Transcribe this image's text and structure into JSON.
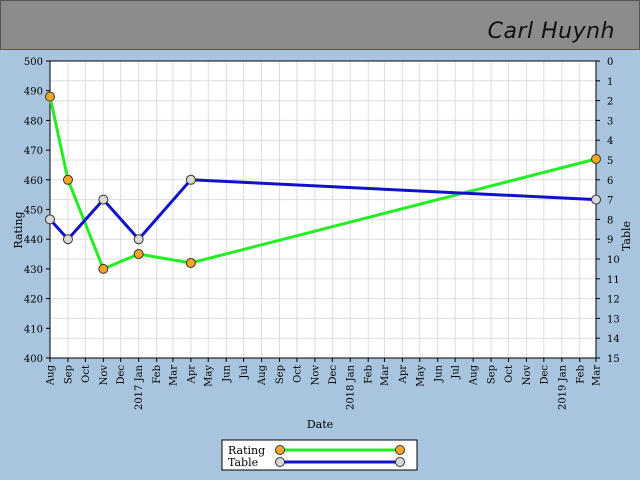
{
  "header": {
    "name": "Carl Huynh"
  },
  "colors": {
    "background": "#a8c4de",
    "header": "#8c8c8c",
    "rating": "#22ee22",
    "table": "#1111cc",
    "rating_marker": "#f5a623",
    "table_marker": "#d8d8d8"
  },
  "chart_data": {
    "type": "line",
    "xlabel": "Date",
    "ylabel_left": "Rating",
    "ylabel_right": "Table",
    "y_left_range": [
      400,
      500
    ],
    "y_left_ticks": [
      "400",
      "410",
      "420",
      "430",
      "440",
      "450",
      "460",
      "470",
      "480",
      "490",
      "500"
    ],
    "y_right_range": [
      0,
      15
    ],
    "y_right_inverted": true,
    "y_right_ticks": [
      "0",
      "1",
      "2",
      "3",
      "4",
      "5",
      "6",
      "7",
      "8",
      "9",
      "10",
      "11",
      "12",
      "13",
      "14",
      "15"
    ],
    "x_range": [
      "2016-08",
      "2019-03"
    ],
    "x_tick_labels": [
      "Aug",
      "Sep",
      "Oct",
      "Nov",
      "Dec",
      "2017 Jan",
      "Feb",
      "Mar",
      "Apr",
      "May",
      "Jun",
      "Jul",
      "Aug",
      "Sep",
      "Oct",
      "Nov",
      "Dec",
      "2018 Jan",
      "Feb",
      "Mar",
      "Apr",
      "May",
      "Jun",
      "Jul",
      "Aug",
      "Sep",
      "Oct",
      "Nov",
      "Dec",
      "2019 Jan",
      "Feb",
      "Mar"
    ],
    "grid": true,
    "legend_position": "bottom-center",
    "series": [
      {
        "name": "Rating",
        "axis": "left",
        "points": [
          {
            "x": "2016-08",
            "y": 488
          },
          {
            "x": "2016-09",
            "y": 460
          },
          {
            "x": "2016-11",
            "y": 430
          },
          {
            "x": "2017-01",
            "y": 435
          },
          {
            "x": "2017-04",
            "y": 432
          },
          {
            "x": "2019-03",
            "y": 467
          }
        ]
      },
      {
        "name": "Table",
        "axis": "right",
        "points": [
          {
            "x": "2016-08",
            "y": 8
          },
          {
            "x": "2016-09",
            "y": 9
          },
          {
            "x": "2016-11",
            "y": 7
          },
          {
            "x": "2017-01",
            "y": 9
          },
          {
            "x": "2017-04",
            "y": 6
          },
          {
            "x": "2019-03",
            "y": 7
          }
        ]
      }
    ]
  }
}
